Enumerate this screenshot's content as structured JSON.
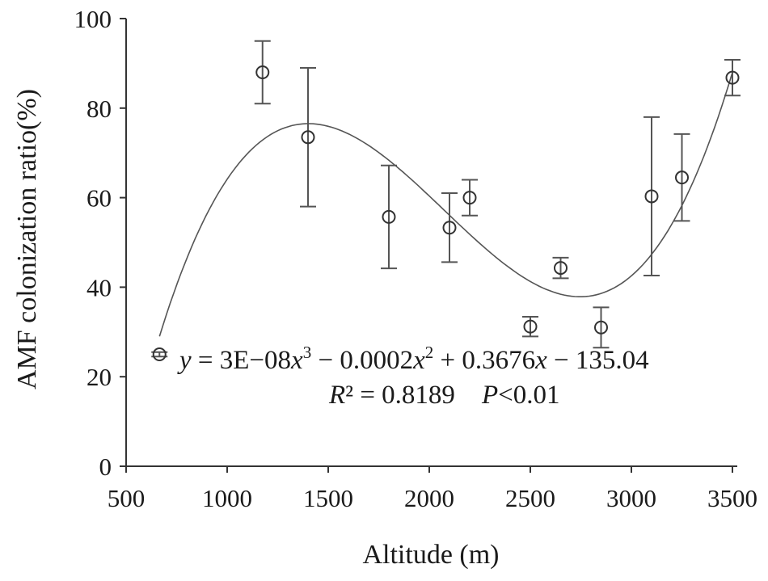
{
  "chart_data": {
    "type": "scatter",
    "xlabel": "Altitude (m)",
    "ylabel": "AMF colonization ratio(%)",
    "xlim": [
      500,
      3500
    ],
    "ylim": [
      0,
      100
    ],
    "xticks": [
      "500",
      "1000",
      "1500",
      "2000",
      "2500",
      "3000",
      "3500"
    ],
    "yticks": [
      "0",
      "20",
      "40",
      "60",
      "80",
      "100"
    ],
    "grid": false,
    "points": [
      {
        "x": 665,
        "y": 25,
        "err": 0.5
      },
      {
        "x": 1175,
        "y": 88,
        "err": 7
      },
      {
        "x": 1400,
        "y": 73.5,
        "err": 15.5
      },
      {
        "x": 1800,
        "y": 55.7,
        "err": 11.5
      },
      {
        "x": 2100,
        "y": 53.3,
        "err": 7.7
      },
      {
        "x": 2200,
        "y": 60,
        "err": 4
      },
      {
        "x": 2500,
        "y": 31.2,
        "err": 2.2
      },
      {
        "x": 2650,
        "y": 44.3,
        "err": 2.3
      },
      {
        "x": 2850,
        "y": 31,
        "err": 4.5
      },
      {
        "x": 3100,
        "y": 60.3,
        "err": 17.7
      },
      {
        "x": 3250,
        "y": 64.5,
        "err": 9.7
      },
      {
        "x": 3500,
        "y": 86.8,
        "err": 4
      }
    ],
    "fit": {
      "type": "cubic",
      "x_range": [
        665,
        3500
      ],
      "anchors": [
        {
          "x": 665,
          "y": 29
        },
        {
          "x": 1380,
          "y": 76.5
        },
        {
          "x": 2700,
          "y": 38
        },
        {
          "x": 3500,
          "y": 88
        }
      ]
    },
    "annotations": {
      "equation_y": "y",
      "equation_eq": " = 3E−08",
      "equation_x1": "x",
      "equation_p1": "3",
      "equation_mid1": " − 0.0002",
      "equation_x2": "x",
      "equation_p2": "2",
      "equation_mid2": " + 0.3676",
      "equation_x3": "x",
      "equation_end": " − 135.04",
      "r2_R": "R",
      "r2_rest": "² = 0.8189",
      "p_gap": "    ",
      "p_P": "P",
      "p_rest": "<0.01"
    }
  }
}
